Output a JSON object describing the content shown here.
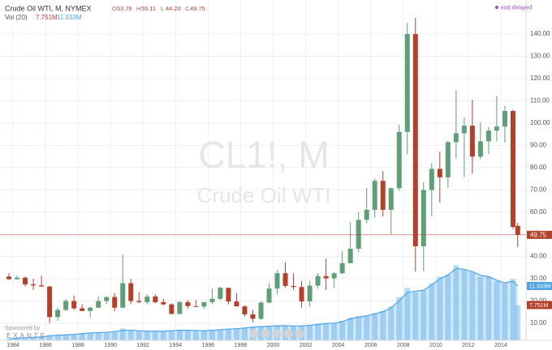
{
  "chart_data": {
    "type": "candlestick",
    "title": "Crude Oil WTI, M, NYMEX",
    "last_bar_keys": [
      "O",
      "H",
      "L",
      "C"
    ],
    "last_bar_labels": [
      "53.76",
      "55.11",
      "44.20",
      "49.75"
    ],
    "volume_name": "Vol (20)",
    "volume_last_label": "7.751M",
    "volume_ma_last_label": "11.933M",
    "status": "eod delayed",
    "watermark": [
      "CL1!, M",
      "Crude Oil WTI"
    ],
    "sponsor": [
      "Sponsored by",
      "EXANTE"
    ],
    "up_color": "#5f9e78",
    "down_color": "#b2412c",
    "volume_color": "#9fd0f3",
    "volume_ma_color": "#4fa3e3",
    "grid": true,
    "xlim": [
      1983.2,
      2015.55
    ],
    "xticks": [
      1984,
      1986,
      1988,
      1990,
      1992,
      1994,
      1996,
      1998,
      2000,
      2002,
      2004,
      2006,
      2008,
      2010,
      2012,
      2014
    ],
    "ylim": [
      2.35,
      155.3
    ],
    "yticks": [
      {
        "value": 10,
        "label": "10.00"
      },
      {
        "value": 20,
        "label": "20.00"
      },
      {
        "value": 30,
        "label": "30.00"
      },
      {
        "value": 40,
        "label": "40.00"
      },
      {
        "value": 50,
        "label": "50.00"
      },
      {
        "value": 60,
        "label": "60.00"
      },
      {
        "value": 70,
        "label": "70.00"
      },
      {
        "value": 80,
        "label": "80.00"
      },
      {
        "value": 90,
        "label": "90.00"
      },
      {
        "value": 100,
        "label": "100.00"
      },
      {
        "value": 110,
        "label": "110.00"
      },
      {
        "value": 120,
        "label": "120.00"
      },
      {
        "value": 130,
        "label": "130.00"
      },
      {
        "value": 140,
        "label": "140.00"
      }
    ],
    "y2lim": [
      0,
      74.8
    ],
    "x": [
      1983.75,
      1984.25,
      1984.75,
      1985.25,
      1985.75,
      1986.25,
      1986.75,
      1987.25,
      1987.75,
      1988.25,
      1988.75,
      1989.25,
      1989.75,
      1990.25,
      1990.75,
      1991.25,
      1991.75,
      1992.25,
      1992.75,
      1993.25,
      1993.75,
      1994.25,
      1994.75,
      1995.25,
      1995.75,
      1996.25,
      1996.75,
      1997.25,
      1997.75,
      1998.25,
      1998.75,
      1999.25,
      1999.75,
      2000.25,
      2000.75,
      2001.25,
      2001.75,
      2002.25,
      2002.75,
      2003.25,
      2003.75,
      2004.25,
      2004.75,
      2005.25,
      2005.75,
      2006.25,
      2006.75,
      2007.25,
      2007.75,
      2008.25,
      2008.75,
      2009.25,
      2009.75,
      2010.25,
      2010.75,
      2011.25,
      2011.75,
      2012.25,
      2012.75,
      2013.25,
      2013.75,
      2014.25,
      2014.75,
      2015.04
    ],
    "open": [
      31,
      29.8,
      30.5,
      27.5,
      27,
      26.5,
      12.8,
      16,
      20,
      16.7,
      15.5,
      17,
      20,
      21.8,
      17,
      28,
      20,
      19.5,
      22,
      19.5,
      18.5,
      14.2,
      19.5,
      17.7,
      17.5,
      19.5,
      21,
      25.9,
      19.8,
      17.6,
      14,
      12,
      19.3,
      25.6,
      32.5,
      26.8,
      26.3,
      19.8,
      26.9,
      31.2,
      30.2,
      32.5,
      37,
      43.5,
      56.5,
      61,
      74,
      61,
      70.7,
      96,
      140,
      44.6,
      69.9,
      79.4,
      75.6,
      91.4,
      95.4,
      98.8,
      84.9,
      91.8,
      96.6,
      98.4,
      105.4,
      53.76
    ],
    "high": [
      32.5,
      31.5,
      31,
      30,
      31.5,
      26.8,
      17,
      21,
      22.5,
      18.5,
      17.5,
      22,
      22,
      23.5,
      41,
      30,
      24,
      23,
      23,
      21,
      19,
      20,
      20.5,
      20.5,
      19.5,
      25.5,
      26.5,
      26,
      23.5,
      18,
      16,
      20,
      28,
      34,
      37.5,
      32.5,
      29,
      29,
      32.5,
      39,
      33,
      42.5,
      55.5,
      60,
      70.8,
      75,
      78.4,
      71,
      99.3,
      145,
      147.3,
      73.4,
      82,
      87.2,
      92,
      114.8,
      102.5,
      110.5,
      100.4,
      98.2,
      112.2,
      107.7,
      106,
      55.11
    ],
    "low": [
      29.5,
      29.5,
      26.5,
      25,
      26.5,
      10,
      11,
      15.5,
      16,
      15.5,
      12.5,
      17,
      18.5,
      15.5,
      17,
      18.5,
      19,
      18.5,
      19,
      18,
      14,
      14,
      16.5,
      17.5,
      16.5,
      18.5,
      20.5,
      18.5,
      17.5,
      13,
      10.5,
      11.5,
      19,
      23,
      26,
      25,
      17,
      17.5,
      25.5,
      25,
      26,
      32,
      37,
      42,
      55,
      57.5,
      58,
      50,
      69.5,
      86,
      33.2,
      33.5,
      58,
      64.2,
      70.8,
      84,
      75.7,
      77.3,
      83.8,
      86.1,
      91.7,
      91.2,
      52.4,
      44.2
    ],
    "close": [
      29.8,
      30.5,
      27.5,
      27,
      26.5,
      12.8,
      16,
      20,
      16.7,
      15.5,
      17,
      20,
      21.8,
      17,
      28,
      20,
      19.5,
      22,
      19.5,
      18.5,
      14.2,
      19.5,
      17.7,
      17.5,
      19.5,
      21,
      25.9,
      19.8,
      17.6,
      14,
      12,
      19.3,
      25.6,
      32.5,
      26.8,
      26.3,
      19.8,
      26.9,
      31.2,
      30.2,
      32.5,
      37,
      43.5,
      56.5,
      61,
      74,
      61,
      70.7,
      96,
      140,
      44.6,
      69.9,
      79.4,
      75.6,
      91.4,
      95.4,
      98.8,
      84.9,
      91.8,
      96.6,
      98.4,
      105.4,
      53.3,
      49.75
    ],
    "volume": [
      0.3,
      0.5,
      0.6,
      0.7,
      0.8,
      1.2,
      1.3,
      1.2,
      1.4,
      1.5,
      1.7,
      1.7,
      1.8,
      2.0,
      2.6,
      2.1,
      2.0,
      2.0,
      2.0,
      2.0,
      2.2,
      2.3,
      2.2,
      2.1,
      2.1,
      2.3,
      2.4,
      2.5,
      2.6,
      2.8,
      3.0,
      3.1,
      3.2,
      3.2,
      3.2,
      3.1,
      3.2,
      3.4,
      3.6,
      3.8,
      3.7,
      4.3,
      5.0,
      5.3,
      5.5,
      6.0,
      6.5,
      7.5,
      9.5,
      11.5,
      10.5,
      11.0,
      12.5,
      14.0,
      14.5,
      16.5,
      15.5,
      15.0,
      14.0,
      14.0,
      13.0,
      12.5,
      13.5,
      7.751
    ],
    "volume_ma": [
      0.3,
      0.45,
      0.55,
      0.65,
      0.75,
      0.95,
      1.1,
      1.2,
      1.3,
      1.45,
      1.6,
      1.7,
      1.75,
      1.9,
      2.2,
      2.2,
      2.1,
      2.0,
      2.0,
      2.0,
      2.1,
      2.2,
      2.2,
      2.15,
      2.1,
      2.2,
      2.35,
      2.45,
      2.55,
      2.7,
      2.9,
      3.0,
      3.1,
      3.2,
      3.2,
      3.15,
      3.15,
      3.3,
      3.5,
      3.7,
      3.75,
      4.1,
      4.7,
      5.1,
      5.4,
      5.8,
      6.3,
      7.1,
      8.7,
      10.5,
      10.8,
      11.0,
      12.2,
      13.5,
      14.3,
      15.8,
      15.6,
      15.1,
      14.3,
      14.0,
      13.2,
      12.6,
      13.0,
      11.933
    ]
  }
}
